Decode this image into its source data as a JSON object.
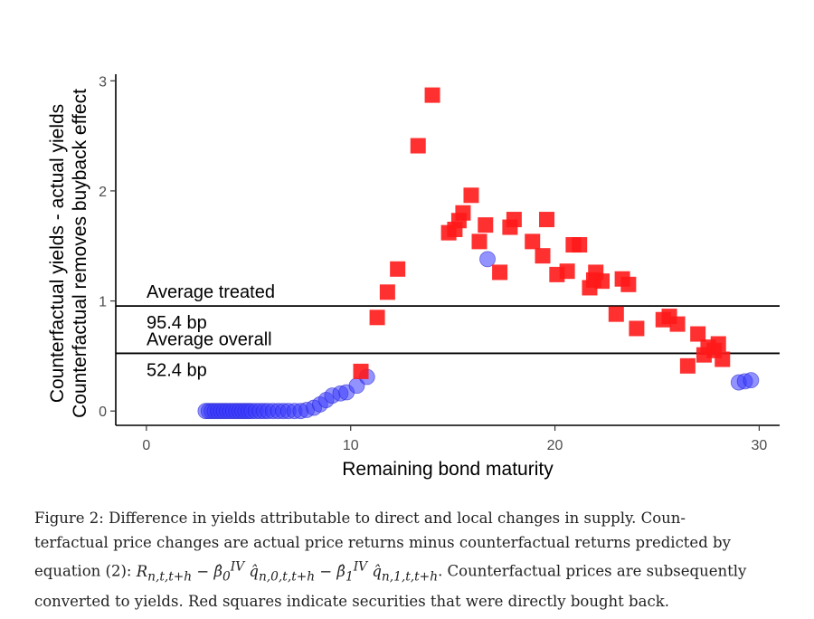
{
  "chart_data": {
    "type": "scatter",
    "xlabel": "Remaining bond maturity",
    "ylabel_lines": [
      "Counterfactual yields - actual yields",
      "Counterfactual removes buyback effect"
    ],
    "xlim": [
      -1.5,
      31
    ],
    "ylim": [
      -0.13,
      3.06
    ],
    "x_ticks": [
      0,
      10,
      20,
      30
    ],
    "y_ticks": [
      0,
      1,
      2,
      3
    ],
    "grid": false,
    "hlines": [
      {
        "y": 0.954,
        "label": "Average treated",
        "value_label": "95.4 bp"
      },
      {
        "y": 0.524,
        "label": "Average overall",
        "value_label": "52.4 bp"
      }
    ],
    "series": [
      {
        "marker": "circle",
        "color": "#3b3bff",
        "points": [
          [
            2.9,
            0.0
          ],
          [
            3.05,
            0.0
          ],
          [
            3.2,
            0.0
          ],
          [
            3.35,
            0.0
          ],
          [
            3.5,
            0.0
          ],
          [
            3.65,
            0.0
          ],
          [
            3.8,
            0.0
          ],
          [
            3.95,
            0.0
          ],
          [
            4.1,
            0.0
          ],
          [
            4.25,
            0.0
          ],
          [
            4.4,
            0.0
          ],
          [
            4.55,
            0.0
          ],
          [
            4.7,
            0.0
          ],
          [
            4.85,
            0.0
          ],
          [
            5.0,
            0.0
          ],
          [
            5.15,
            0.0
          ],
          [
            5.35,
            0.0
          ],
          [
            5.55,
            0.0
          ],
          [
            5.75,
            0.0
          ],
          [
            5.95,
            0.0
          ],
          [
            6.2,
            0.0
          ],
          [
            6.45,
            0.0
          ],
          [
            6.7,
            0.0
          ],
          [
            6.95,
            0.0
          ],
          [
            7.25,
            0.0
          ],
          [
            7.55,
            0.0
          ],
          [
            7.85,
            0.01
          ],
          [
            8.2,
            0.03
          ],
          [
            8.5,
            0.06
          ],
          [
            8.8,
            0.1
          ],
          [
            9.1,
            0.14
          ],
          [
            9.5,
            0.16
          ],
          [
            9.8,
            0.17
          ],
          [
            10.3,
            0.23
          ],
          [
            10.8,
            0.31
          ],
          [
            16.7,
            1.38
          ],
          [
            29.0,
            0.26
          ],
          [
            29.3,
            0.27
          ],
          [
            29.6,
            0.28
          ]
        ]
      },
      {
        "marker": "square",
        "color": "#ff1a1a",
        "points": [
          [
            10.5,
            0.36
          ],
          [
            11.3,
            0.85
          ],
          [
            11.8,
            1.08
          ],
          [
            12.3,
            1.29
          ],
          [
            13.3,
            2.41
          ],
          [
            14.0,
            2.87
          ],
          [
            14.8,
            1.62
          ],
          [
            15.1,
            1.65
          ],
          [
            15.3,
            1.73
          ],
          [
            15.5,
            1.8
          ],
          [
            15.9,
            1.96
          ],
          [
            16.3,
            1.54
          ],
          [
            16.6,
            1.69
          ],
          [
            17.3,
            1.26
          ],
          [
            17.8,
            1.67
          ],
          [
            18.0,
            1.74
          ],
          [
            18.9,
            1.54
          ],
          [
            19.4,
            1.41
          ],
          [
            19.6,
            1.74
          ],
          [
            20.1,
            1.24
          ],
          [
            20.6,
            1.27
          ],
          [
            20.9,
            1.51
          ],
          [
            21.2,
            1.51
          ],
          [
            21.7,
            1.12
          ],
          [
            21.9,
            1.19
          ],
          [
            22.0,
            1.26
          ],
          [
            22.3,
            1.18
          ],
          [
            23.0,
            0.88
          ],
          [
            23.3,
            1.2
          ],
          [
            23.6,
            1.15
          ],
          [
            24.0,
            0.75
          ],
          [
            25.3,
            0.83
          ],
          [
            25.6,
            0.86
          ],
          [
            26.0,
            0.79
          ],
          [
            26.5,
            0.41
          ],
          [
            27.0,
            0.7
          ],
          [
            27.3,
            0.51
          ],
          [
            27.5,
            0.58
          ],
          [
            27.8,
            0.55
          ],
          [
            28.0,
            0.61
          ],
          [
            28.2,
            0.47
          ]
        ]
      }
    ]
  },
  "caption": {
    "lines": [
      "Figure 2: Difference in yields attributable to direct and local changes in supply. Coun-",
      "terfactual price changes are actual price returns minus counterfactual returns predicted by",
      "equation (2): ",
      ". Counterfactual prices are subsequently",
      "converted to yields. Red squares indicate securities that were directly bought back."
    ]
  }
}
